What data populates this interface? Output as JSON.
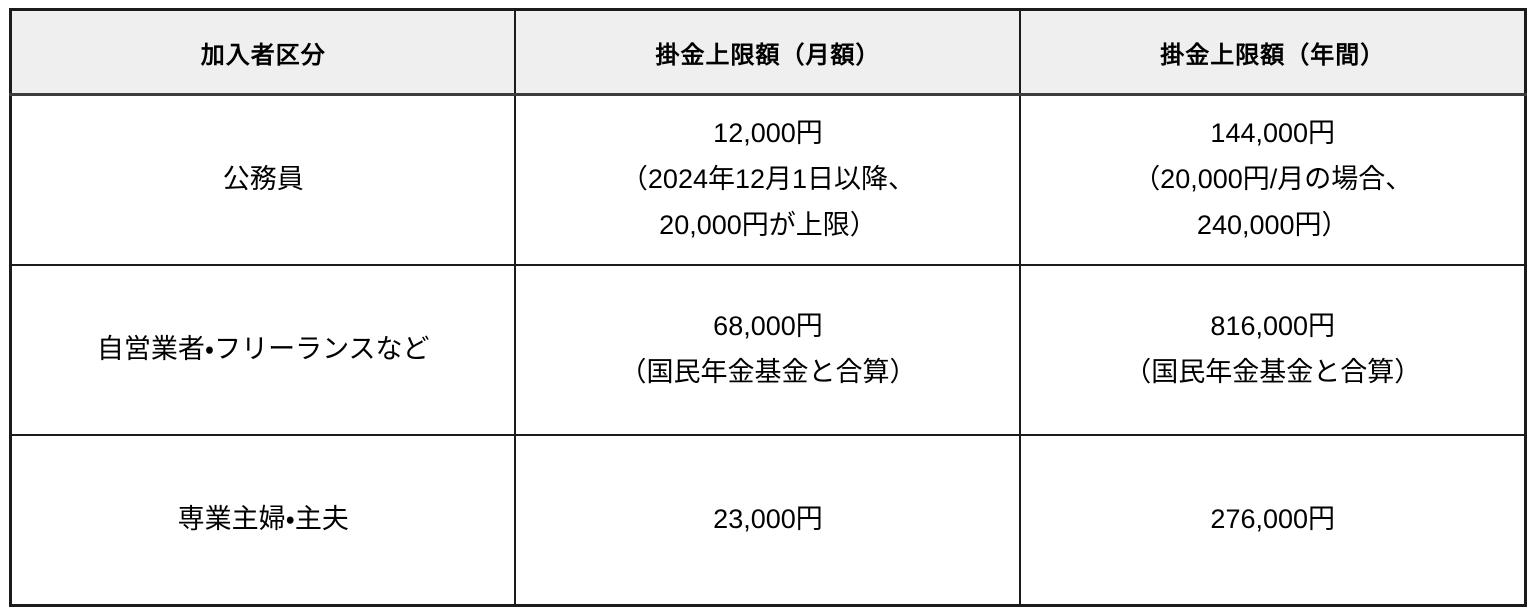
{
  "table": {
    "headers": [
      "加入者区分",
      "掛金上限額（月額）",
      "掛金上限額（年間）"
    ],
    "rows": [
      {
        "category": [
          "公務員"
        ],
        "monthly": [
          "12,000円",
          "（2024年12月1日以降、",
          "20,000円が上限）"
        ],
        "yearly": [
          "144,000円",
          "（20,000円/月の場合、",
          "240,000円）"
        ]
      },
      {
        "category": [
          "自営業者・フリーランスなど"
        ],
        "monthly": [
          "68,000円",
          "（国民年金基金と合算）"
        ],
        "yearly": [
          "816,000円",
          "（国民年金基金と合算）"
        ]
      },
      {
        "category": [
          "専業主婦・主夫"
        ],
        "monthly": [
          "23,000円"
        ],
        "yearly": [
          "276,000円"
        ]
      }
    ],
    "colors": {
      "header_bg": "#efefef",
      "border": "#1b1b1b",
      "text": "#000000",
      "cell_bg": "#ffffff"
    }
  }
}
